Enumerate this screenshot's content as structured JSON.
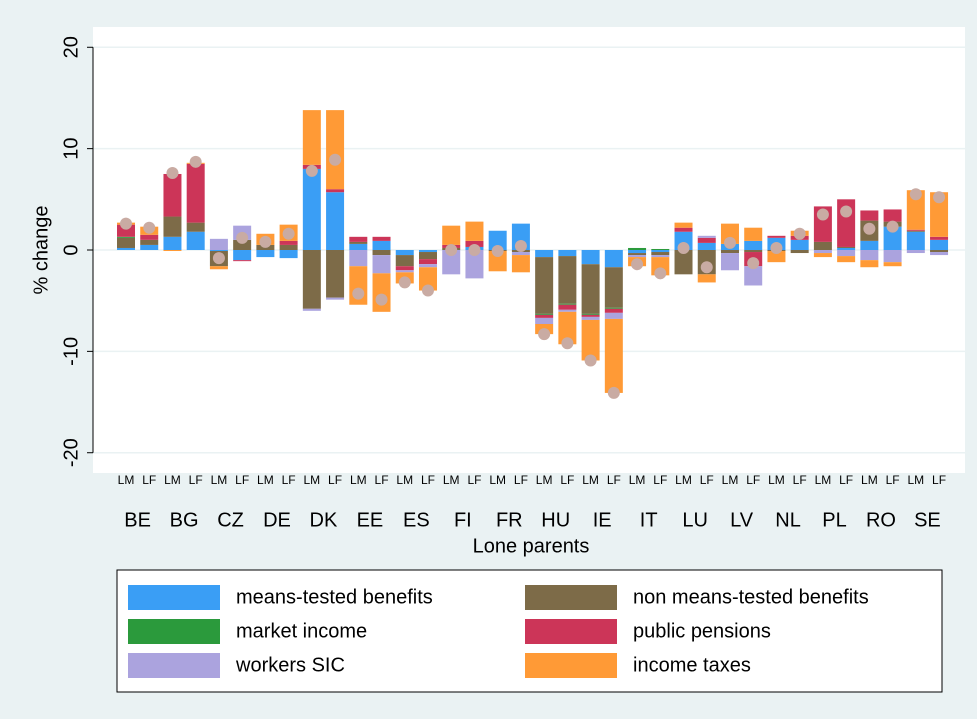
{
  "chart_data": {
    "type": "stacked-bar",
    "y_label": "% change",
    "x_label": "Lone parents",
    "categories": [
      "LM",
      "LF",
      "LM",
      "LF",
      "LM",
      "LF",
      "LM",
      "LF",
      "LM",
      "LF",
      "LM",
      "LF",
      "LM",
      "LF",
      "LM",
      "LF",
      "LM",
      "LF",
      "LM",
      "LF",
      "LM",
      "LF",
      "LM",
      "LF",
      "LM",
      "LF",
      "LM",
      "LF",
      "LM",
      "LF",
      "LM",
      "LF",
      "LM",
      "LF",
      "LM",
      "LF"
    ],
    "groups": [
      "BE",
      "BG",
      "CZ",
      "DE",
      "DK",
      "EE",
      "ES",
      "FI",
      "FR",
      "HU",
      "IE",
      "IT",
      "LU",
      "LV",
      "NL",
      "PL",
      "RO",
      "SE"
    ],
    "ylim": [
      -22,
      22
    ],
    "yticks": [
      -20,
      -10,
      0,
      10,
      20
    ],
    "grid": true,
    "series": [
      {
        "name": "means-tested benefits",
        "color": "#3a9ef5",
        "values": [
          0.2,
          0.5,
          1.3,
          1.8,
          -0.1,
          -1.0,
          -0.7,
          -0.8,
          8.0,
          5.7,
          0.6,
          0.9,
          -0.5,
          -0.2,
          0,
          0.3,
          1.9,
          2.6,
          -0.7,
          -0.6,
          -1.4,
          -1.7,
          -0.3,
          -0.2,
          1.8,
          0.7,
          0.6,
          0.9,
          1.2,
          1.0,
          0,
          0.2,
          0.9,
          2.3,
          1.8,
          1.0
        ]
      },
      {
        "name": "non means-tested benefits",
        "color": "#7d6b48",
        "values": [
          1.0,
          0.5,
          2.0,
          0.9,
          -1.5,
          1.0,
          0.5,
          0.5,
          -5.8,
          -4.7,
          0.2,
          -0.5,
          -1.1,
          -0.7,
          0.2,
          0,
          -0.1,
          -0.2,
          -5.6,
          -4.7,
          -4.9,
          -4.0,
          -0.2,
          -0.3,
          -2.4,
          -2.4,
          -0.3,
          -0.2,
          -0.1,
          -0.3,
          0.8,
          0.1,
          2.0,
          0.5,
          0.1,
          -0.2
        ]
      },
      {
        "name": "market income",
        "color": "#2b9a3c",
        "values": [
          0.1,
          0,
          0,
          0,
          0,
          0,
          0,
          0,
          0,
          0,
          0,
          0,
          0,
          0,
          0,
          0,
          0,
          0,
          -0.1,
          -0.1,
          -0.1,
          -0.1,
          0.2,
          0.1,
          0,
          0,
          0,
          0,
          0,
          0,
          0,
          0,
          0,
          0,
          0,
          0
        ]
      },
      {
        "name": "public pensions",
        "color": "#cc3558",
        "values": [
          1.2,
          0.5,
          4.2,
          5.8,
          0,
          -0.1,
          0,
          0.4,
          0.4,
          0.3,
          0.5,
          0.4,
          -0.4,
          -0.5,
          0.3,
          0.6,
          0,
          0,
          -0.3,
          -0.5,
          -0.2,
          -0.4,
          0,
          0,
          0.4,
          0.5,
          0,
          -1.4,
          0.2,
          0.4,
          3.5,
          4.7,
          1.0,
          1.2,
          0.1,
          0.3
        ]
      },
      {
        "name": "workers SIC",
        "color": "#aba3de",
        "values": [
          0,
          0,
          0,
          0,
          1.1,
          1.4,
          0,
          0,
          -0.2,
          -0.2,
          -1.6,
          -1.8,
          -0.2,
          -0.3,
          -2.4,
          -2.8,
          0,
          -0.3,
          -0.6,
          -0.2,
          -0.3,
          -0.6,
          -0.2,
          -0.2,
          0,
          0.2,
          -1.7,
          -1.9,
          0,
          0,
          -0.3,
          -0.6,
          -1.0,
          -1.2,
          -0.3,
          -0.3
        ]
      },
      {
        "name": "income taxes",
        "color": "#ff9a36",
        "values": [
          0.2,
          0.8,
          -0.1,
          0.1,
          -0.3,
          0,
          1.1,
          1.6,
          5.4,
          7.8,
          -3.8,
          -3.8,
          -1.1,
          -2.3,
          1.9,
          1.9,
          -2.0,
          -1.7,
          -1.0,
          -3.2,
          -4.0,
          -7.3,
          -0.9,
          -1.8,
          0.5,
          -0.8,
          2.0,
          1.3,
          -1.1,
          0.5,
          -0.4,
          -0.6,
          -0.7,
          -0.4,
          3.9,
          4.4
        ]
      }
    ],
    "markers": {
      "color": "#c9aba3",
      "values": [
        2.6,
        2.2,
        7.6,
        8.7,
        -0.8,
        1.2,
        0.8,
        1.6,
        7.8,
        8.9,
        -4.3,
        -4.9,
        -3.2,
        -4.0,
        0,
        0,
        -0.1,
        0.4,
        -8.3,
        -9.2,
        -10.9,
        -14.1,
        -1.4,
        -2.3,
        0.2,
        -1.7,
        0.7,
        -1.3,
        0.2,
        1.6,
        3.5,
        3.8,
        2.1,
        2.3,
        5.5,
        5.2
      ]
    }
  }
}
